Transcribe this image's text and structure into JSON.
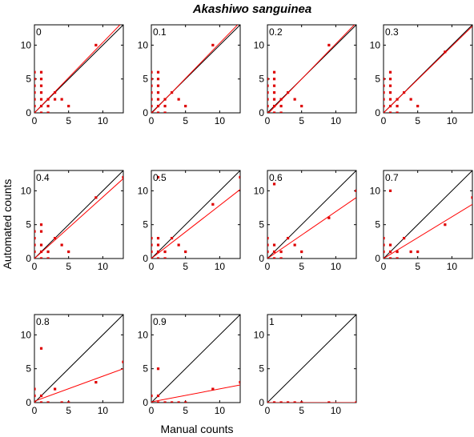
{
  "chart_data": {
    "type": "scatter",
    "title": "Akashiwo sanguinea",
    "xlabel": "Manual counts",
    "ylabel": "Automated counts",
    "xlim": [
      0,
      13
    ],
    "ylim": [
      0,
      13
    ],
    "xticks": [
      "0",
      "5",
      "10"
    ],
    "yticks": [
      "0",
      "5",
      "10"
    ],
    "grid": false,
    "colors": {
      "points": "#dd0000",
      "fit": "#ff0000",
      "one_to_one": "#000000"
    },
    "panels": [
      {
        "label": "0",
        "points": [
          [
            0,
            0
          ],
          [
            0,
            1
          ],
          [
            0,
            2
          ],
          [
            0,
            3
          ],
          [
            0,
            4
          ],
          [
            0,
            5
          ],
          [
            0,
            6
          ],
          [
            1,
            0
          ],
          [
            1,
            1
          ],
          [
            1,
            2
          ],
          [
            1,
            3
          ],
          [
            1,
            4
          ],
          [
            1,
            5
          ],
          [
            1,
            6
          ],
          [
            2,
            0
          ],
          [
            2,
            1
          ],
          [
            2,
            2
          ],
          [
            3,
            2
          ],
          [
            3,
            3
          ],
          [
            4,
            2
          ],
          [
            5,
            1
          ],
          [
            9,
            10
          ]
        ],
        "fit": [
          [
            0,
            0.0
          ],
          [
            13,
            13.5
          ]
        ]
      },
      {
        "label": "0.1",
        "points": [
          [
            0,
            0
          ],
          [
            0,
            1
          ],
          [
            0,
            2
          ],
          [
            0,
            3
          ],
          [
            0,
            4
          ],
          [
            0,
            5
          ],
          [
            0,
            6
          ],
          [
            1,
            0
          ],
          [
            1,
            1
          ],
          [
            1,
            2
          ],
          [
            1,
            3
          ],
          [
            1,
            4
          ],
          [
            1,
            5
          ],
          [
            1,
            6
          ],
          [
            2,
            0
          ],
          [
            2,
            1
          ],
          [
            2,
            2
          ],
          [
            3,
            3
          ],
          [
            4,
            2
          ],
          [
            5,
            1
          ],
          [
            9,
            10
          ]
        ],
        "fit": [
          [
            0,
            -0.1
          ],
          [
            13,
            13.4
          ]
        ]
      },
      {
        "label": "0.2",
        "points": [
          [
            0,
            0
          ],
          [
            0,
            1
          ],
          [
            0,
            2
          ],
          [
            0,
            3
          ],
          [
            0,
            4
          ],
          [
            0,
            5
          ],
          [
            1,
            0
          ],
          [
            1,
            1
          ],
          [
            1,
            2
          ],
          [
            1,
            3
          ],
          [
            1,
            4
          ],
          [
            1,
            5
          ],
          [
            1,
            6
          ],
          [
            2,
            0
          ],
          [
            2,
            1
          ],
          [
            2,
            2
          ],
          [
            3,
            3
          ],
          [
            4,
            2
          ],
          [
            5,
            1
          ],
          [
            9,
            10
          ]
        ],
        "fit": [
          [
            0,
            -0.2
          ],
          [
            13,
            13.3
          ]
        ]
      },
      {
        "label": "0.3",
        "points": [
          [
            0,
            0
          ],
          [
            0,
            1
          ],
          [
            0,
            2
          ],
          [
            0,
            3
          ],
          [
            0,
            4
          ],
          [
            0,
            5
          ],
          [
            1,
            0
          ],
          [
            1,
            1
          ],
          [
            1,
            2
          ],
          [
            1,
            3
          ],
          [
            1,
            4
          ],
          [
            1,
            5
          ],
          [
            1,
            6
          ],
          [
            2,
            0
          ],
          [
            2,
            1
          ],
          [
            2,
            2
          ],
          [
            3,
            3
          ],
          [
            4,
            2
          ],
          [
            5,
            1
          ],
          [
            9,
            9
          ]
        ],
        "fit": [
          [
            0,
            0.0
          ],
          [
            13,
            12.8
          ]
        ]
      },
      {
        "label": "0.4",
        "points": [
          [
            0,
            0
          ],
          [
            0,
            1
          ],
          [
            0,
            2
          ],
          [
            0,
            3
          ],
          [
            0,
            4
          ],
          [
            1,
            0
          ],
          [
            1,
            1
          ],
          [
            1,
            2
          ],
          [
            1,
            4
          ],
          [
            1,
            5
          ],
          [
            2,
            0
          ],
          [
            2,
            1
          ],
          [
            3,
            3
          ],
          [
            4,
            2
          ],
          [
            5,
            1
          ],
          [
            9,
            9
          ],
          [
            13,
            12
          ]
        ],
        "fit": [
          [
            0,
            0.0
          ],
          [
            13,
            11.8
          ]
        ]
      },
      {
        "label": "0.5",
        "points": [
          [
            0,
            0
          ],
          [
            0,
            1
          ],
          [
            0,
            2
          ],
          [
            0,
            3
          ],
          [
            1,
            0
          ],
          [
            1,
            1
          ],
          [
            1,
            2
          ],
          [
            1,
            3
          ],
          [
            1,
            12
          ],
          [
            2,
            0
          ],
          [
            2,
            1
          ],
          [
            3,
            3
          ],
          [
            4,
            2
          ],
          [
            5,
            1
          ],
          [
            9,
            8
          ],
          [
            13,
            12
          ]
        ],
        "fit": [
          [
            0,
            0.0
          ],
          [
            13,
            10.2
          ]
        ]
      },
      {
        "label": "0.6",
        "points": [
          [
            0,
            0
          ],
          [
            0,
            1
          ],
          [
            0,
            2
          ],
          [
            0,
            3
          ],
          [
            1,
            0
          ],
          [
            1,
            1
          ],
          [
            1,
            2
          ],
          [
            1,
            11
          ],
          [
            2,
            0
          ],
          [
            2,
            1
          ],
          [
            3,
            3
          ],
          [
            4,
            2
          ],
          [
            5,
            1
          ],
          [
            9,
            6
          ],
          [
            13,
            10
          ]
        ],
        "fit": [
          [
            0,
            0.0
          ],
          [
            13,
            9.0
          ]
        ]
      },
      {
        "label": "0.7",
        "points": [
          [
            0,
            0
          ],
          [
            0,
            1
          ],
          [
            0,
            2
          ],
          [
            0,
            3
          ],
          [
            1,
            0
          ],
          [
            1,
            1
          ],
          [
            1,
            2
          ],
          [
            1,
            10
          ],
          [
            2,
            0
          ],
          [
            2,
            1
          ],
          [
            3,
            3
          ],
          [
            4,
            1
          ],
          [
            5,
            1
          ],
          [
            9,
            5
          ],
          [
            13,
            9
          ]
        ],
        "fit": [
          [
            0,
            0.0
          ],
          [
            13,
            8.0
          ]
        ]
      },
      {
        "label": "0.8",
        "points": [
          [
            0,
            0
          ],
          [
            0,
            1
          ],
          [
            0,
            2
          ],
          [
            1,
            0
          ],
          [
            1,
            1
          ],
          [
            1,
            8
          ],
          [
            2,
            0
          ],
          [
            3,
            2
          ],
          [
            4,
            0
          ],
          [
            5,
            0
          ],
          [
            9,
            3
          ],
          [
            13,
            6
          ]
        ],
        "fit": [
          [
            0,
            0.2
          ],
          [
            13,
            5.0
          ]
        ]
      },
      {
        "label": "0.9",
        "points": [
          [
            0,
            0
          ],
          [
            0,
            1
          ],
          [
            1,
            0
          ],
          [
            1,
            1
          ],
          [
            1,
            5
          ],
          [
            2,
            0
          ],
          [
            3,
            0
          ],
          [
            4,
            0
          ],
          [
            5,
            0
          ],
          [
            9,
            2
          ],
          [
            13,
            3
          ]
        ],
        "fit": [
          [
            0,
            0.1
          ],
          [
            13,
            2.6
          ]
        ]
      },
      {
        "label": "1",
        "points": [
          [
            0,
            0
          ],
          [
            1,
            0
          ],
          [
            2,
            0
          ],
          [
            3,
            0
          ],
          [
            4,
            0
          ],
          [
            5,
            0
          ],
          [
            9,
            0
          ],
          [
            13,
            0
          ]
        ],
        "fit": [
          [
            0,
            0.0
          ],
          [
            13,
            0.0
          ]
        ]
      }
    ]
  }
}
